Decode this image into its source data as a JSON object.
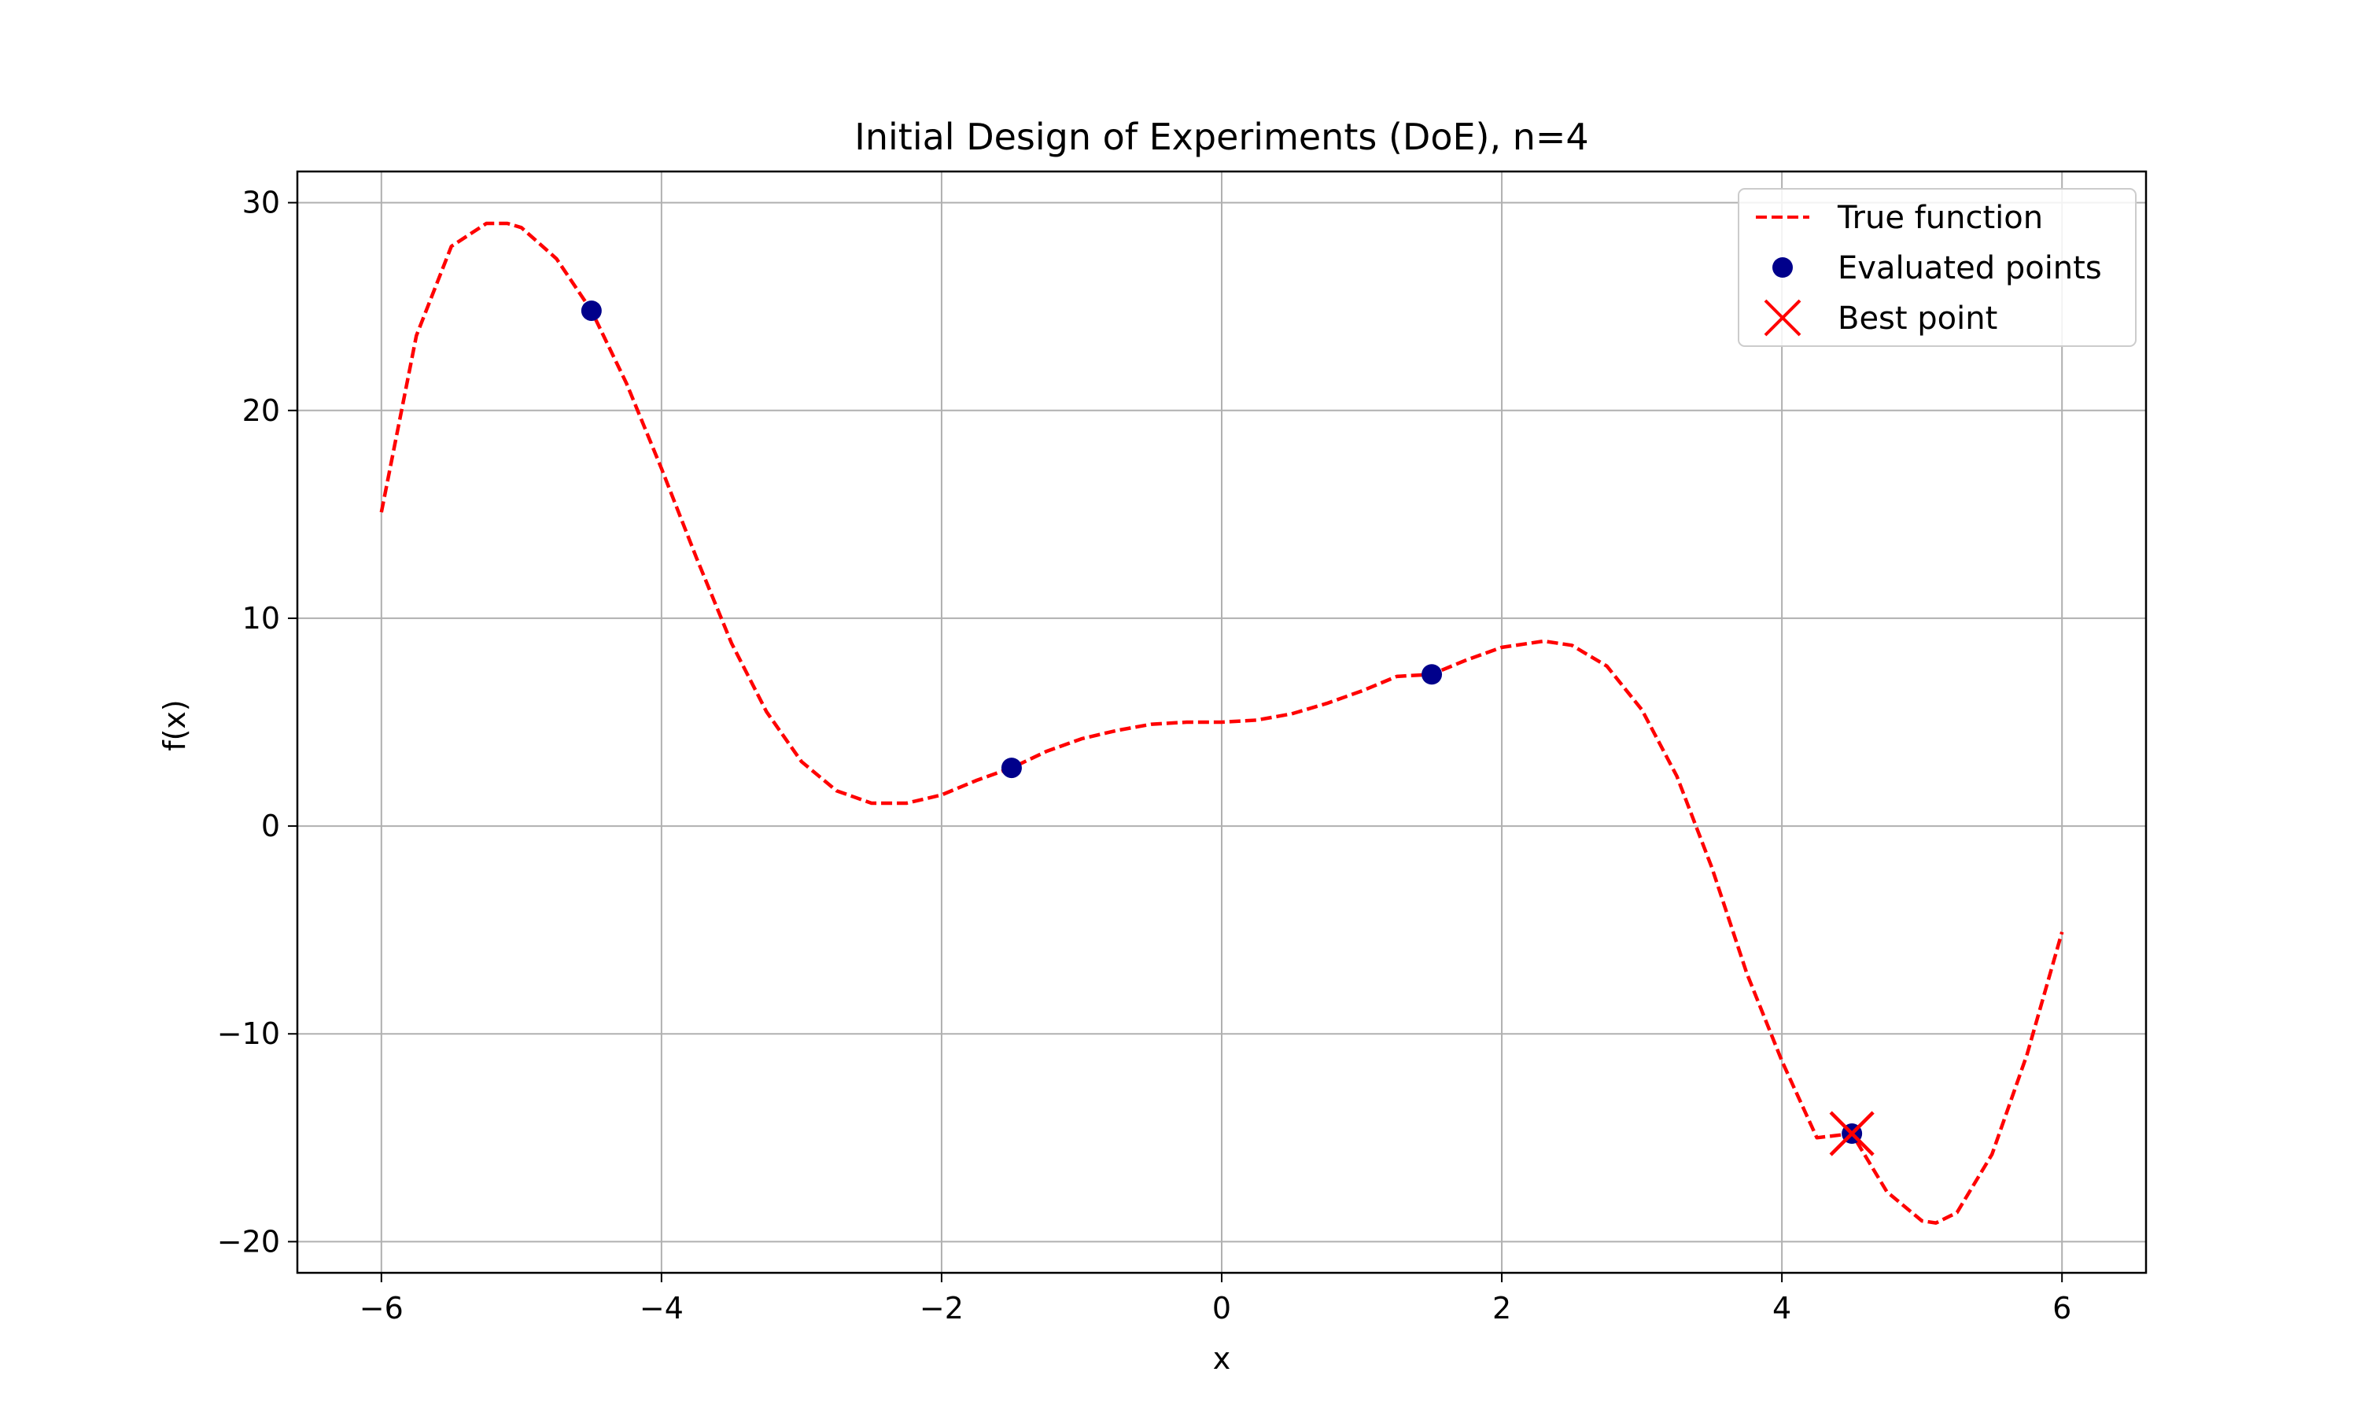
{
  "chart_data": {
    "type": "line",
    "title": "Initial Design of Experiments (DoE), n=4",
    "xlabel": "x",
    "ylabel": "f(x)",
    "xlim": [
      -6.6,
      6.6
    ],
    "ylim": [
      -21.5,
      31.5
    ],
    "xticks": [
      -6,
      -4,
      -2,
      0,
      2,
      4,
      6
    ],
    "yticks": [
      -20,
      -10,
      0,
      10,
      20,
      30
    ],
    "grid": true,
    "legend_position": "top-right",
    "colors": {
      "true_function": "#ff0000",
      "evaluated_points": "#00008b",
      "best_point": "#ff0000"
    },
    "series": [
      {
        "name": "True function",
        "style": "dashed-line",
        "x": [
          -6.0,
          -5.75,
          -5.5,
          -5.25,
          -5.1,
          -5.0,
          -4.75,
          -4.5,
          -4.25,
          -4.0,
          -3.75,
          -3.5,
          -3.25,
          -3.0,
          -2.75,
          -2.5,
          -2.25,
          -2.0,
          -1.75,
          -1.5,
          -1.25,
          -1.0,
          -0.75,
          -0.5,
          -0.25,
          0.0,
          0.25,
          0.5,
          0.75,
          1.0,
          1.25,
          1.5,
          1.75,
          2.0,
          2.3,
          2.5,
          2.75,
          3.0,
          3.25,
          3.5,
          3.75,
          4.0,
          4.25,
          4.5,
          4.75,
          5.0,
          5.1,
          5.25,
          5.5,
          5.75,
          6.0
        ],
        "y": [
          15.1,
          23.6,
          27.9,
          29.0,
          29.0,
          28.8,
          27.3,
          24.8,
          21.3,
          17.2,
          12.9,
          8.8,
          5.5,
          3.1,
          1.7,
          1.1,
          1.1,
          1.5,
          2.2,
          2.8,
          3.6,
          4.2,
          4.6,
          4.9,
          5.0,
          5.0,
          5.1,
          5.4,
          5.9,
          6.5,
          7.2,
          7.3,
          8.0,
          8.6,
          8.9,
          8.7,
          7.7,
          5.6,
          2.4,
          -2.0,
          -7.1,
          -11.3,
          -15.0,
          -14.8,
          -17.6,
          -19.0,
          -19.1,
          -18.6,
          -15.8,
          -11.0,
          -5.1
        ]
      },
      {
        "name": "Evaluated points",
        "style": "scatter",
        "x": [
          -4.5,
          -1.5,
          1.5,
          4.5
        ],
        "y": [
          24.8,
          2.8,
          7.3,
          -14.8
        ]
      },
      {
        "name": "Best point",
        "style": "x-marker",
        "x": [
          4.5
        ],
        "y": [
          -14.8
        ]
      }
    ]
  }
}
